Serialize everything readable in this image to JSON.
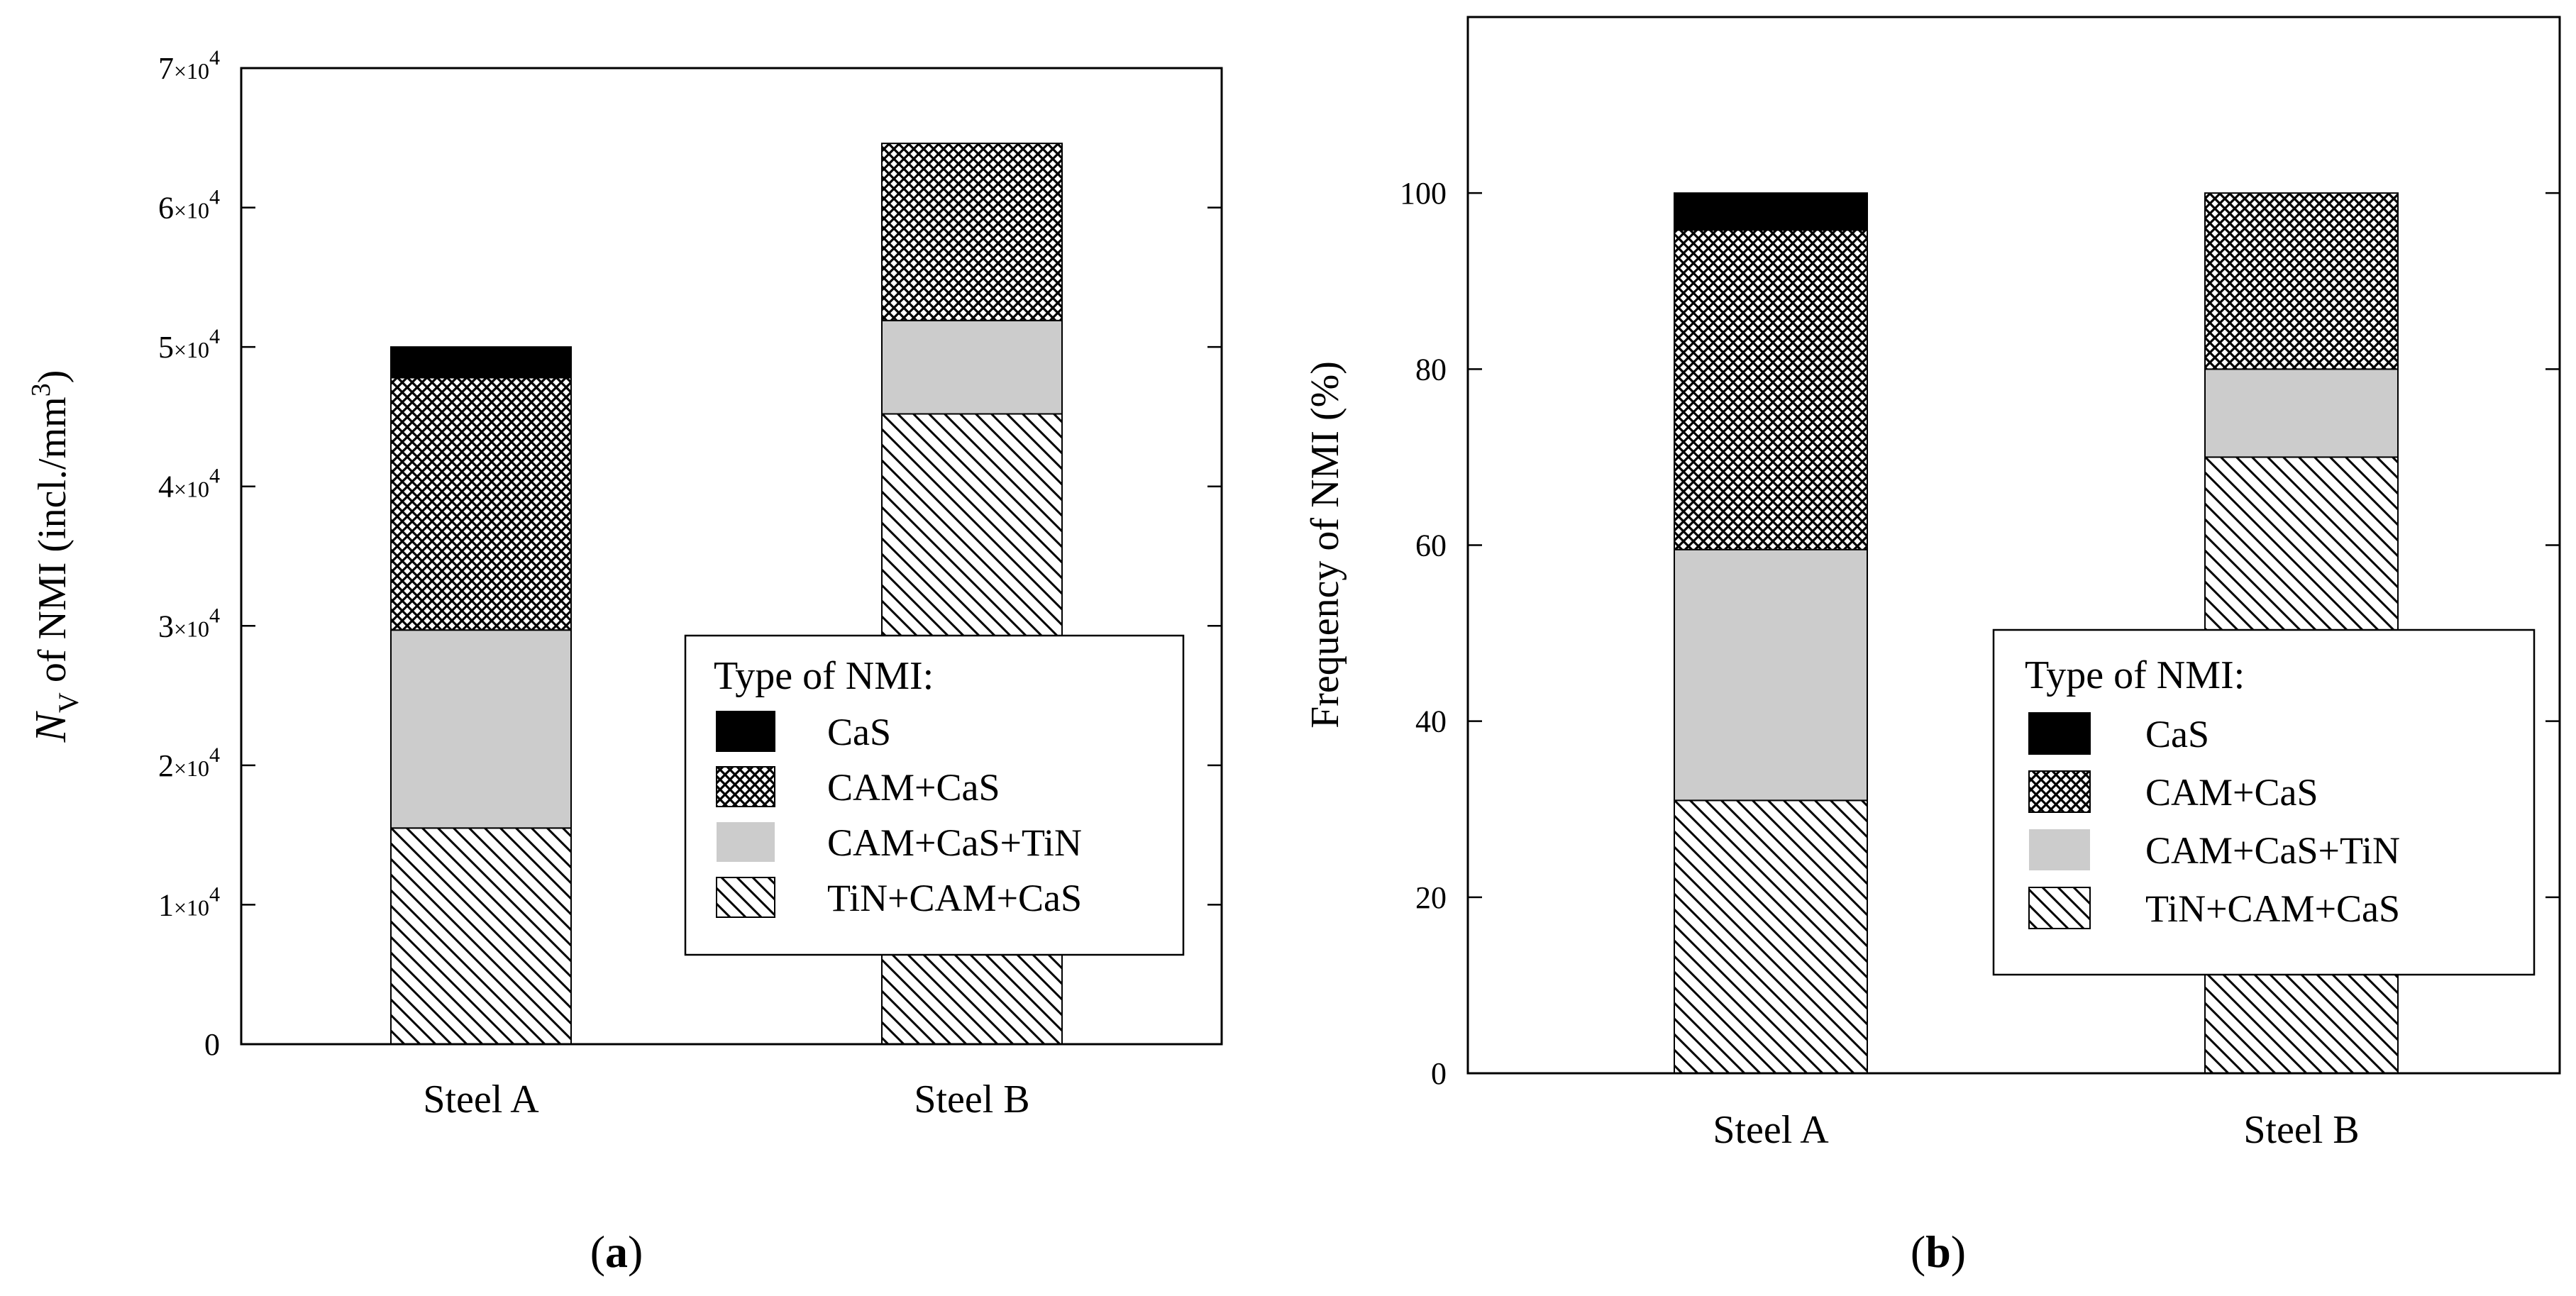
{
  "chart_data": [
    {
      "type": "bar",
      "stacked": true,
      "panel_label": "a",
      "categories": [
        "Steel A",
        "Steel B"
      ],
      "series": [
        {
          "name": "TiN+CAM+CaS",
          "pattern": "hatch",
          "values": [
            15500,
            45200
          ]
        },
        {
          "name": "CAM+CaS+TiN",
          "pattern": "solid-gray",
          "values": [
            14200,
            6700
          ]
        },
        {
          "name": "CAM+CaS",
          "pattern": "crosshatch",
          "values": [
            18100,
            12700
          ]
        },
        {
          "name": "CaS",
          "pattern": "solid-black",
          "values": [
            2200,
            0
          ]
        }
      ],
      "ylabel": {
        "italic": "N",
        "subscript": "V",
        "text": "of NMI",
        "unit": "(incl./mm",
        "unit_sup": "3",
        "unit_close": ")"
      },
      "ylim": [
        0,
        70000
      ],
      "yticks": [
        {
          "value": 0,
          "label": "0"
        },
        {
          "value": 10000,
          "mant": "1",
          "base": "×10",
          "exp": "4"
        },
        {
          "value": 20000,
          "mant": "2",
          "base": "×10",
          "exp": "4"
        },
        {
          "value": 30000,
          "mant": "3",
          "base": "×10",
          "exp": "4"
        },
        {
          "value": 40000,
          "mant": "4",
          "base": "×10",
          "exp": "4"
        },
        {
          "value": 50000,
          "mant": "5",
          "base": "×10",
          "exp": "4"
        },
        {
          "value": 60000,
          "mant": "6",
          "base": "×10",
          "exp": "4"
        },
        {
          "value": 70000,
          "mant": "7",
          "base": "×10",
          "exp": "4"
        }
      ],
      "legend": {
        "title": "Type of NMI:",
        "position": "lower-right",
        "entries": [
          "CaS",
          "CAM+CaS",
          "CAM+CaS+TiN",
          "TiN+CAM+CaS"
        ]
      }
    },
    {
      "type": "bar",
      "stacked": true,
      "panel_label": "b",
      "categories": [
        "Steel A",
        "Steel B"
      ],
      "series": [
        {
          "name": "TiN+CAM+CaS",
          "pattern": "hatch",
          "values": [
            31,
            70
          ]
        },
        {
          "name": "CAM+CaS+TiN",
          "pattern": "solid-gray",
          "values": [
            28.5,
            10
          ]
        },
        {
          "name": "CAM+CaS",
          "pattern": "crosshatch",
          "values": [
            36.3,
            20
          ]
        },
        {
          "name": "CaS",
          "pattern": "solid-black",
          "values": [
            4.2,
            0
          ]
        }
      ],
      "ylabel": {
        "text": "Frequency of NMI",
        "unit": "(%)"
      },
      "ylim": [
        0,
        120
      ],
      "yticks": [
        {
          "value": 0,
          "label": "0"
        },
        {
          "value": 20,
          "label": "20"
        },
        {
          "value": 40,
          "label": "40"
        },
        {
          "value": 60,
          "label": "60"
        },
        {
          "value": 80,
          "label": "80"
        },
        {
          "value": 100,
          "label": "100"
        }
      ],
      "legend": {
        "title": "Type of NMI:",
        "position": "lower-right",
        "entries": [
          "CaS",
          "CAM+CaS",
          "CAM+CaS+TiN",
          "TiN+CAM+CaS"
        ]
      }
    }
  ]
}
